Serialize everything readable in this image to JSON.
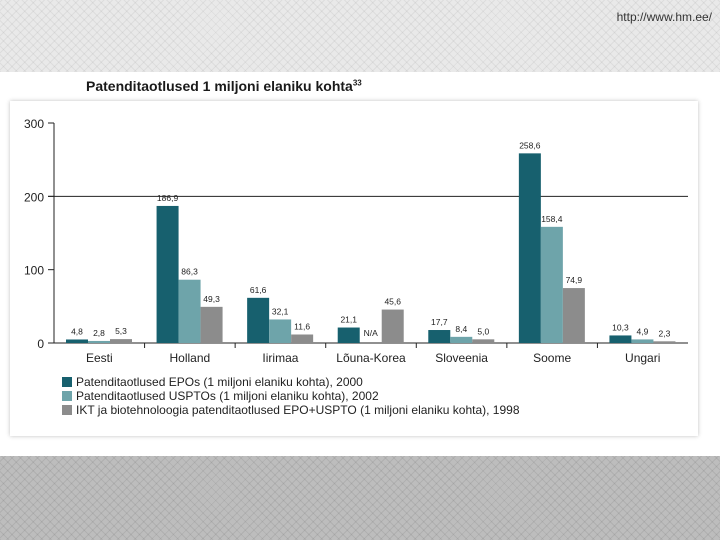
{
  "page": {
    "url": "http://www.hm.ee/"
  },
  "chart_data": {
    "type": "bar",
    "title": "Patenditaotlused 1 miljoni elaniku kohta",
    "title_note": "33",
    "ylim": [
      0,
      300
    ],
    "yticks": [
      "0",
      "100",
      "200",
      "300"
    ],
    "grid": false,
    "reference_lines": [
      200
    ],
    "categories": [
      "Eesti",
      "Holland",
      "Iirimaa",
      "Lõuna-Korea",
      "Sloveenia",
      "Soome",
      "Ungari"
    ],
    "series": [
      {
        "name": "Patenditaotlused EPOs (1 miljoni elaniku kohta), 2000",
        "color": "#17606e",
        "values": [
          4.8,
          186.9,
          61.6,
          21.1,
          17.7,
          258.6,
          10.3
        ],
        "labels": [
          "4,8",
          "186,9",
          "61,6",
          "21,1",
          "17,7",
          "258,6",
          "10,3"
        ]
      },
      {
        "name": "Patenditaotlused USPTOs (1 miljoni elaniku kohta), 2002",
        "color": "#6ea4aa",
        "values": [
          2.8,
          86.3,
          32.1,
          null,
          8.4,
          158.4,
          4.9
        ],
        "labels": [
          "2,8",
          "86,3",
          "32,1",
          "N/A",
          "8,4",
          "158,4",
          "4,9"
        ]
      },
      {
        "name": "IKT ja biotehnoloogia patenditaotlused EPO+USPTO (1 miljoni elaniku kohta), 1998",
        "color": "#8c8c8c",
        "values": [
          5.3,
          49.3,
          11.6,
          45.6,
          5.0,
          74.9,
          2.3
        ],
        "labels": [
          "5,3",
          "49,3",
          "11,6",
          "45,6",
          "5,0",
          "74,9",
          "2,3"
        ]
      }
    ],
    "legend_position": "bottom-left"
  }
}
